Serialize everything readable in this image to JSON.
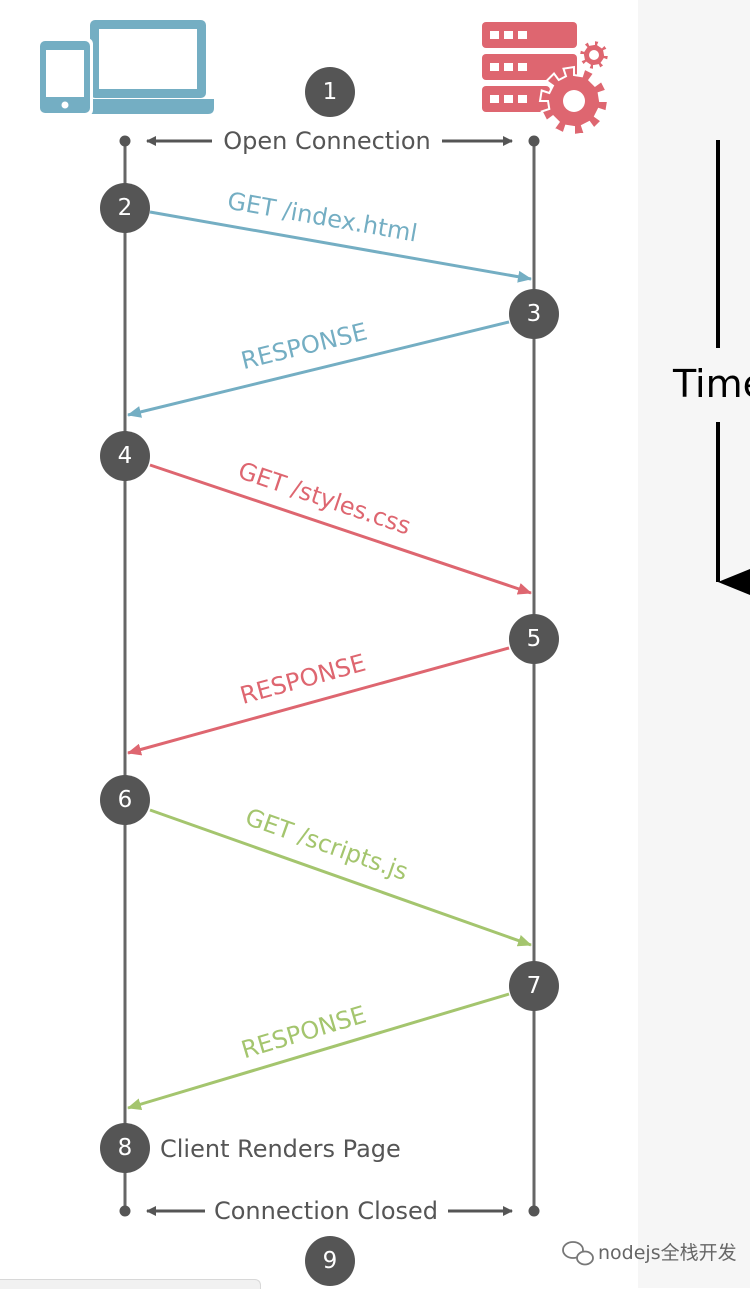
{
  "colors": {
    "line": "#666666",
    "circle": "#555555",
    "blue": "#74aec3",
    "red": "#de6670",
    "green": "#a4c56e",
    "black": "#000000"
  },
  "icons": {
    "client": "devices-icon",
    "server": "server-gears-icon"
  },
  "steps": {
    "s1": "1",
    "s2": "2",
    "s3": "3",
    "s4": "4",
    "s5": "5",
    "s6": "6",
    "s7": "7",
    "s8": "8",
    "s9": "9"
  },
  "labels": {
    "open": "Open Connection",
    "closed": "Connection Closed",
    "render": "Client Renders Page",
    "time": "Time"
  },
  "messages": [
    {
      "text": "GET /index.html",
      "color": "blue"
    },
    {
      "text": "RESPONSE",
      "color": "blue"
    },
    {
      "text": "GET /styles.css",
      "color": "red"
    },
    {
      "text": "RESPONSE",
      "color": "red"
    },
    {
      "text": "GET /scripts.js",
      "color": "green"
    },
    {
      "text": "RESPONSE",
      "color": "green"
    }
  ],
  "watermark": "nodejs全栈开发"
}
